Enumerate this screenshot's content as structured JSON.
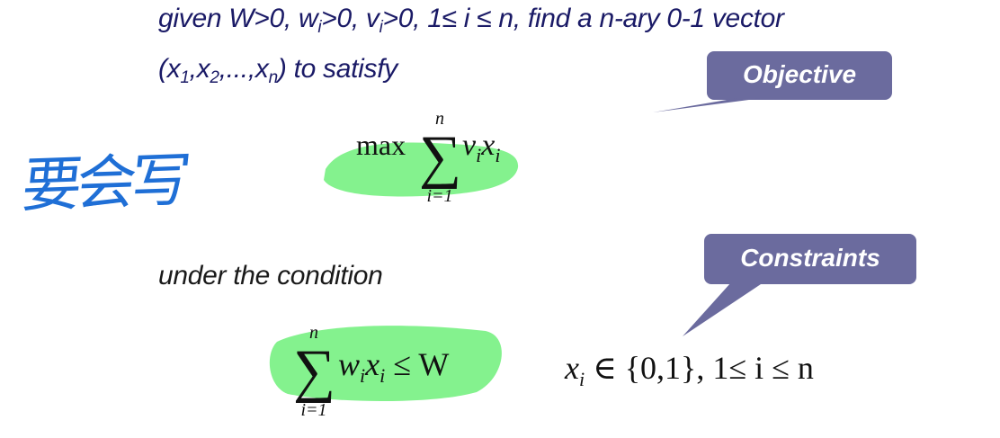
{
  "problem": {
    "line1_pre": "given W>0, w",
    "line1_sub1": "i",
    "line1_mid": ">0, v",
    "line1_sub2": "i",
    "line1_post": ">0, 1≤ i ≤ n, find a n-ary ",
    "line1_vector": " 0-1 vector",
    "line2_open": "(x",
    "line2_s1": "1",
    "line2_c1": ",x",
    "line2_s2": "2",
    "line2_c2": ",...,x",
    "line2_s3": "n",
    "line2_end": ") to satisfy",
    "condition": "under the condition"
  },
  "objective": {
    "max": "max",
    "sigma": "∑",
    "upper": "n",
    "lower": "i=1",
    "v": "v",
    "sub_i1": "i",
    "x": "x",
    "sub_i2": "i"
  },
  "constraint": {
    "sigma": "∑",
    "upper": "n",
    "lower": "i=1",
    "w": "w",
    "sub_i1": "i",
    "x": "x",
    "sub_i2": "i",
    "le_w": " ≤ W"
  },
  "domain_cond": {
    "x": "x",
    "sub_i": "i",
    "rest": " ∈ {0,1}, 1≤ i ≤ n"
  },
  "callouts": {
    "objective": "Objective",
    "constraints": "Constraints",
    "color": "#6b6b9e"
  },
  "annotation": {
    "handwriting": "要会写",
    "ink_color": "#1f6fd6"
  },
  "highlight_color": "#6ef07a"
}
